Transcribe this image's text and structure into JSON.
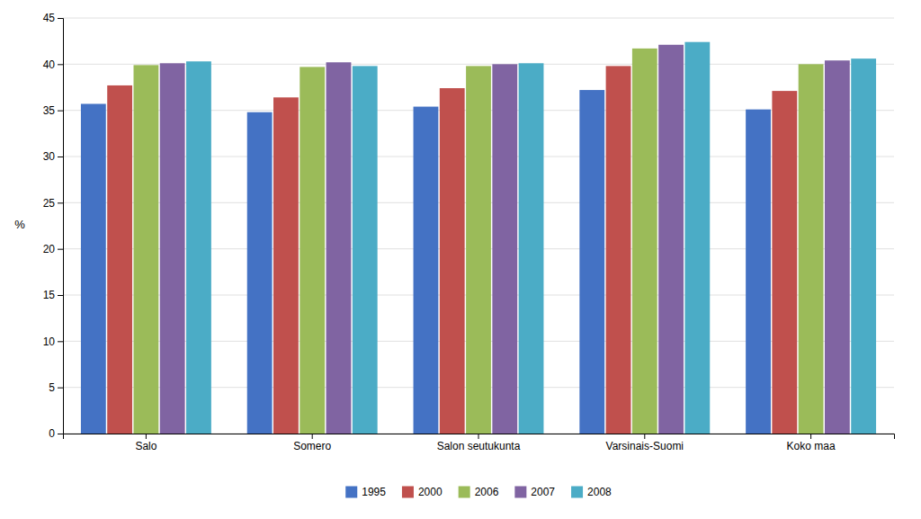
{
  "chart_data": {
    "type": "bar",
    "categories": [
      "Salo",
      "Somero",
      "Salon seutukunta",
      "Varsinais-Suomi",
      "Koko maa"
    ],
    "series": [
      {
        "name": "1995",
        "color": "#4472C4",
        "values": [
          35.7,
          34.8,
          35.4,
          37.2,
          35.1
        ]
      },
      {
        "name": "2000",
        "color": "#C0504D",
        "values": [
          37.7,
          36.4,
          37.4,
          39.8,
          37.1
        ]
      },
      {
        "name": "2006",
        "color": "#9BBB59",
        "values": [
          39.9,
          39.7,
          39.8,
          41.7,
          40.0
        ]
      },
      {
        "name": "2007",
        "color": "#8064A2",
        "values": [
          40.1,
          40.2,
          40.0,
          42.1,
          40.4
        ]
      },
      {
        "name": "2008",
        "color": "#4BACC6",
        "values": [
          40.3,
          39.8,
          40.1,
          42.4,
          40.6
        ]
      }
    ],
    "ylabel": "%",
    "ylim": [
      0,
      45
    ],
    "yticks": [
      0,
      5,
      10,
      15,
      20,
      25,
      30,
      35,
      40,
      45
    ],
    "grid": true,
    "legend": "bottom"
  }
}
